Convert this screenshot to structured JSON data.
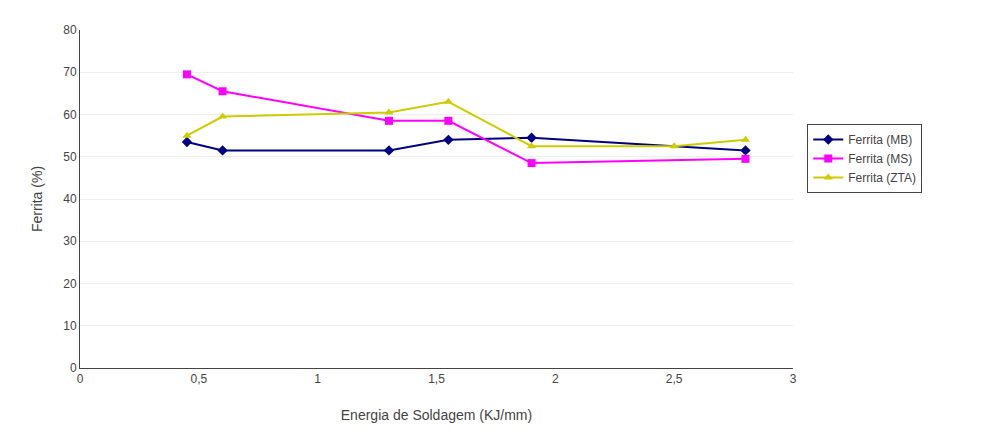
{
  "chart_data": {
    "type": "line",
    "xlabel": "Energia de Soldagem (KJ/mm)",
    "ylabel": "Ferrita (%)",
    "xlim": [
      0,
      3
    ],
    "ylim": [
      0,
      80
    ],
    "xticks": [
      0,
      {
        "value": 0.5,
        "label": "0,5"
      },
      1,
      {
        "value": 1.5,
        "label": "1,5"
      },
      2,
      {
        "value": 2.5,
        "label": "2,5"
      },
      3
    ],
    "yticks": [
      0,
      10,
      20,
      30,
      40,
      50,
      60,
      70,
      80
    ],
    "grid": "y",
    "legend": "right",
    "series": [
      {
        "name": "Ferrita (MB)",
        "color": "#000080",
        "marker": "diamond",
        "x": [
          0.45,
          0.6,
          1.3,
          1.55,
          1.9,
          2.8
        ],
        "values": [
          53.5,
          51.5,
          51.5,
          54.0,
          54.5,
          51.5
        ]
      },
      {
        "name": "Ferrita (MS)",
        "color": "#ff00ff",
        "marker": "square",
        "x": [
          0.45,
          0.6,
          1.3,
          1.55,
          1.9,
          2.8
        ],
        "values": [
          69.5,
          65.5,
          58.5,
          58.5,
          48.5,
          49.5
        ]
      },
      {
        "name": "Ferrita (ZTA)",
        "color": "#cccc00",
        "marker": "triangle",
        "x": [
          0.45,
          0.6,
          1.3,
          1.55,
          1.9,
          2.5,
          2.8
        ],
        "values": [
          55.0,
          59.5,
          60.5,
          63.0,
          52.5,
          52.5,
          54.0
        ]
      }
    ]
  }
}
